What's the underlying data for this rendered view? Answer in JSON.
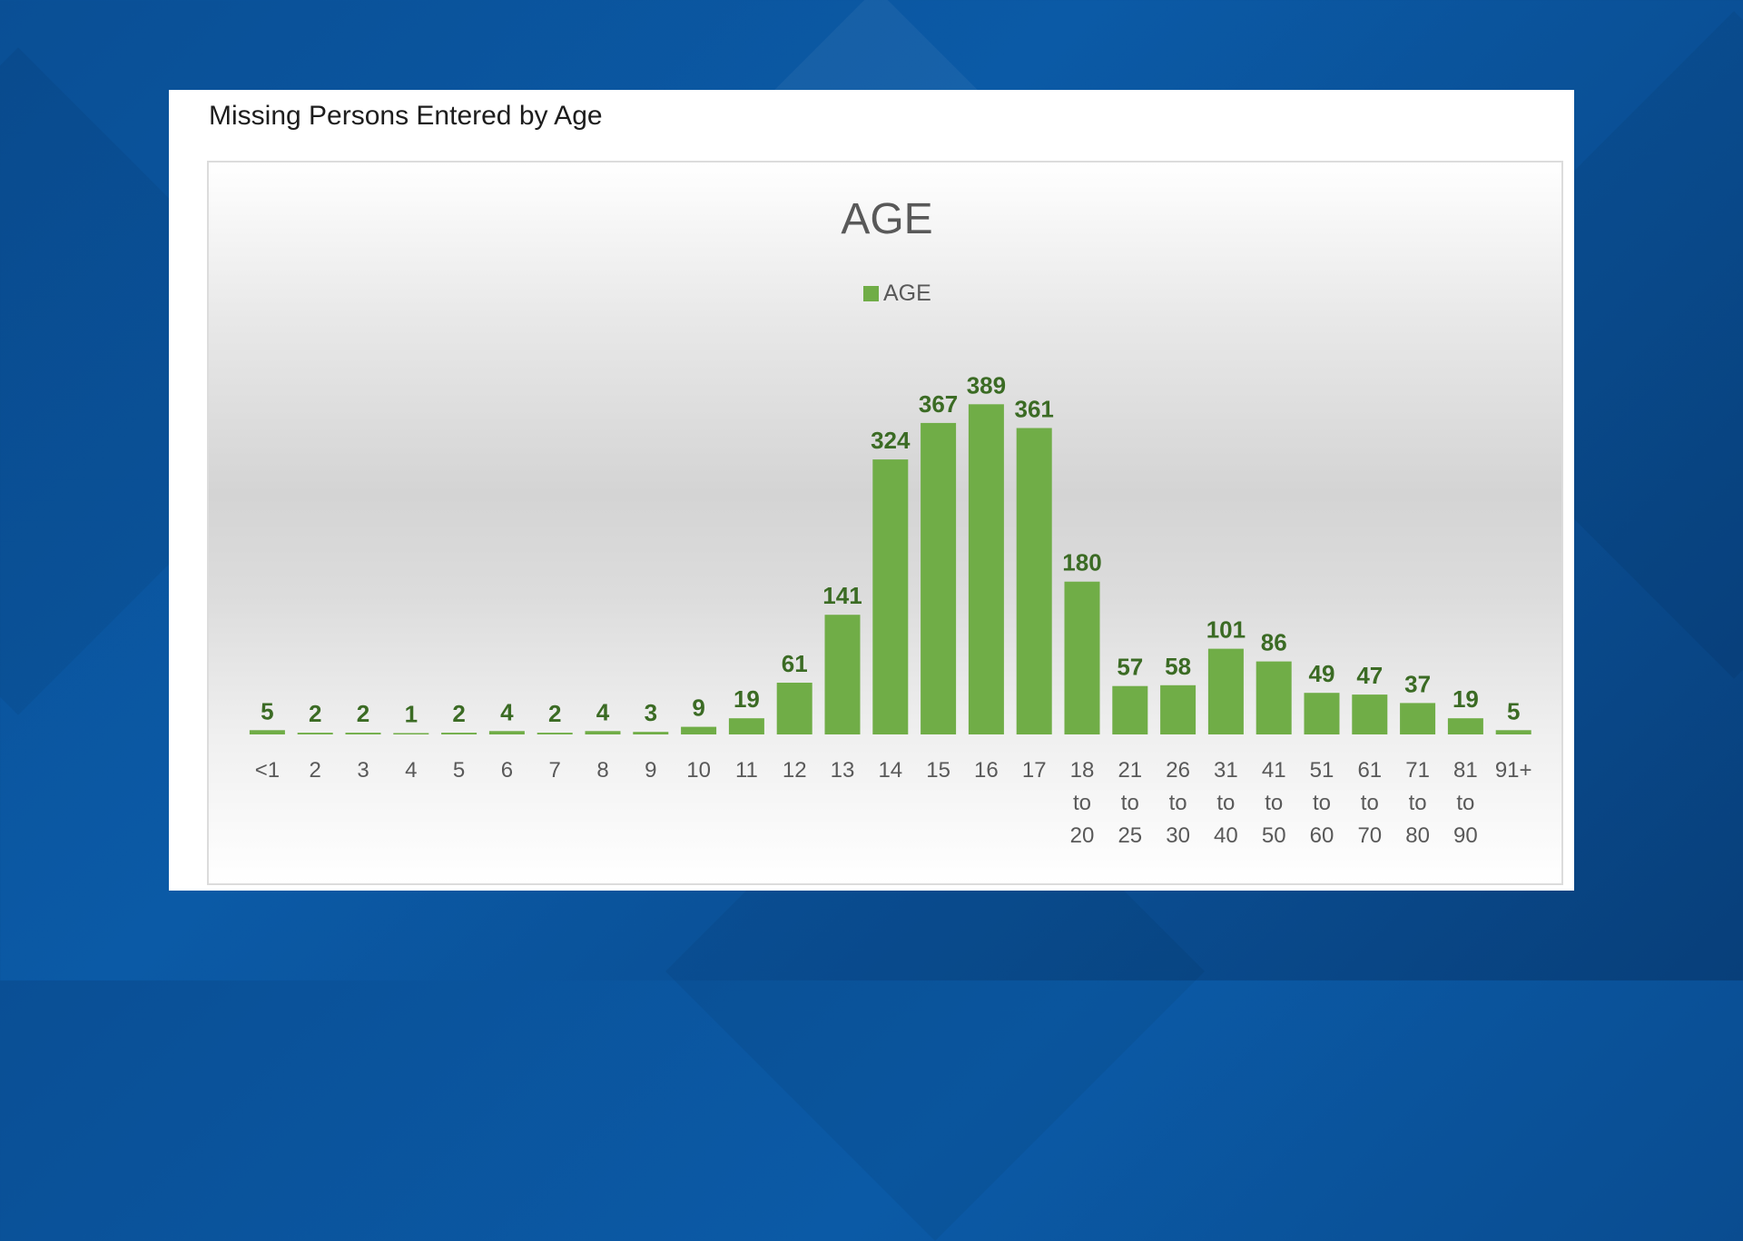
{
  "page": {
    "card_title": "Missing Persons Entered by Age"
  },
  "colors": {
    "bar": "#70ad47",
    "bar_dark": "#5f9a3a",
    "value_label": "#3b6b24",
    "background": "#0b5aa6"
  },
  "chart_data": {
    "type": "bar",
    "title": "AGE",
    "legend": {
      "position": "top",
      "entries": [
        "AGE"
      ]
    },
    "grid": false,
    "yaxis_visible": false,
    "ylim": [
      0,
      400
    ],
    "categories": [
      [
        "<1"
      ],
      [
        "2"
      ],
      [
        "3"
      ],
      [
        "4"
      ],
      [
        "5"
      ],
      [
        "6"
      ],
      [
        "7"
      ],
      [
        "8"
      ],
      [
        "9"
      ],
      [
        "10"
      ],
      [
        "11"
      ],
      [
        "12"
      ],
      [
        "13"
      ],
      [
        "14"
      ],
      [
        "15"
      ],
      [
        "16"
      ],
      [
        "17"
      ],
      [
        "18",
        "to",
        "20"
      ],
      [
        "21",
        "to",
        "25"
      ],
      [
        "26",
        "to",
        "30"
      ],
      [
        "31",
        "to",
        "40"
      ],
      [
        "41",
        "to",
        "50"
      ],
      [
        "51",
        "to",
        "60"
      ],
      [
        "61",
        "to",
        "70"
      ],
      [
        "71",
        "to",
        "80"
      ],
      [
        "81",
        "to",
        "90"
      ],
      [
        "91+"
      ]
    ],
    "series": [
      {
        "name": "AGE",
        "values": [
          5,
          2,
          2,
          1,
          2,
          4,
          2,
          4,
          3,
          9,
          19,
          61,
          141,
          324,
          367,
          389,
          361,
          180,
          57,
          58,
          101,
          86,
          49,
          47,
          37,
          19,
          5
        ]
      }
    ]
  }
}
